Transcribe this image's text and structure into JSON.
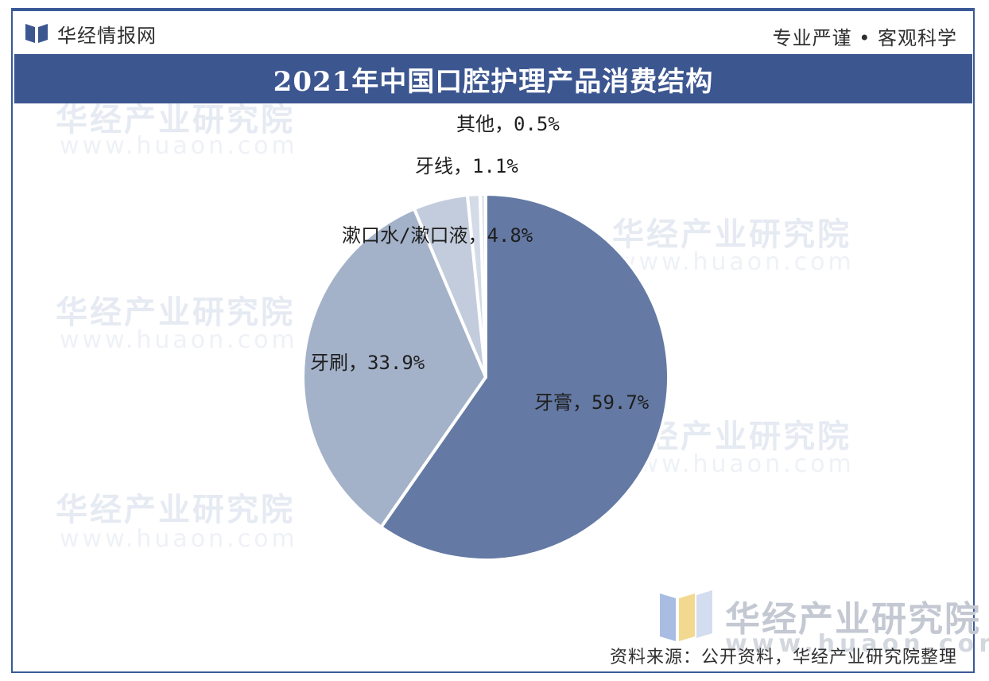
{
  "header": {
    "brand_name": "华经情报网",
    "slogan": "专业严谨 • 客观科学"
  },
  "watermark": {
    "text": "华经产业研究院",
    "url": "www.huaon.com"
  },
  "footer": {
    "brand": "华经产业研究院",
    "url": "www.huaon.com",
    "source": "资料来源：公开资料，华经产业研究院整理"
  },
  "colors": {
    "title_bar": "#3c5690",
    "frame": "#3b5998",
    "slices": [
      "#6479a3",
      "#a3b1c9",
      "#c2ccdc",
      "#d3dbe7",
      "#e2e7ef"
    ]
  },
  "chart_data": {
    "type": "pie",
    "title": "2021年中国口腔护理产品消费结构",
    "unit": "%",
    "slices": [
      {
        "name": "牙膏",
        "value": 59.7,
        "label": "牙膏，59.7%"
      },
      {
        "name": "牙刷",
        "value": 33.9,
        "label": "牙刷，33.9%"
      },
      {
        "name": "漱口水/漱口液",
        "value": 4.8,
        "label": "漱口水/漱口液，4.8%"
      },
      {
        "name": "牙线",
        "value": 1.1,
        "label": "牙线，1.1%"
      },
      {
        "name": "其他",
        "value": 0.5,
        "label": "其他，0.5%"
      }
    ]
  }
}
